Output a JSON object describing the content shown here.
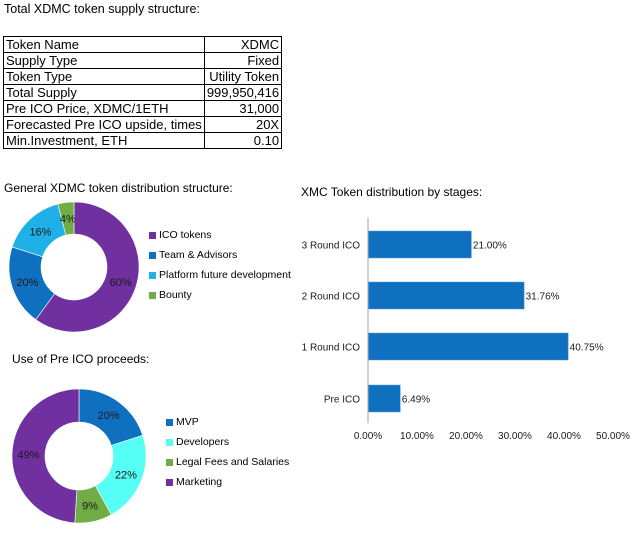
{
  "page": {
    "title": "Total XDMC token supply structure:"
  },
  "supply_table": {
    "rows": [
      {
        "label": "Token Name",
        "value": "XDMC"
      },
      {
        "label": "Supply Type",
        "value": "Fixed"
      },
      {
        "label": "Token Type",
        "value": "Utility Token"
      },
      {
        "label": "Total Supply",
        "value": "999,950,416"
      },
      {
        "label": "Pre ICO Price, XDMC/1ETH",
        "value": "31,000"
      },
      {
        "label": "Forecasted Pre ICO upside, times",
        "value": "20X"
      },
      {
        "label": "Min.Investment, ETH",
        "value": "0.10"
      }
    ]
  },
  "chart_data": [
    {
      "type": "pie",
      "variant": "donut",
      "title": "General XDMC token distribution structure:",
      "legend_position": "right",
      "categories": [
        "ICO tokens",
        "Team & Advisors",
        "Platform future development",
        "Bounty"
      ],
      "values": [
        60,
        20,
        16,
        4
      ],
      "labels": [
        "60%",
        "20%",
        "16%",
        "4%"
      ],
      "colors": [
        "#7030a0",
        "#1070c0",
        "#1fb0e8",
        "#70ad47"
      ]
    },
    {
      "type": "pie",
      "variant": "donut",
      "title": "Use of Pre ICO proceeds:",
      "legend_position": "right",
      "categories": [
        "MVP",
        "Developers",
        "Legal Fees and Salaries",
        "Marketing"
      ],
      "values": [
        20,
        22,
        9,
        49
      ],
      "labels": [
        "20%",
        "22%",
        "9%",
        "49%"
      ],
      "colors": [
        "#1070c0",
        "#55fff5",
        "#70ad47",
        "#7030a0"
      ]
    },
    {
      "type": "bar",
      "orientation": "horizontal",
      "title": "XMC Token distribution by stages:",
      "categories": [
        "3 Round ICO",
        "2 Round ICO",
        "1 Round ICO",
        "Pre ICO"
      ],
      "values": [
        21.0,
        31.76,
        40.75,
        6.49
      ],
      "labels": [
        "21.00%",
        "31.76%",
        "40.75%",
        "6.49%"
      ],
      "xlim": [
        0,
        50
      ],
      "xticks": [
        "0.00%",
        "10.00%",
        "20.00%",
        "30.00%",
        "40.00%",
        "50.00%"
      ],
      "xlabel": "",
      "ylabel": "",
      "grid": false,
      "color": "#1070c0"
    }
  ]
}
